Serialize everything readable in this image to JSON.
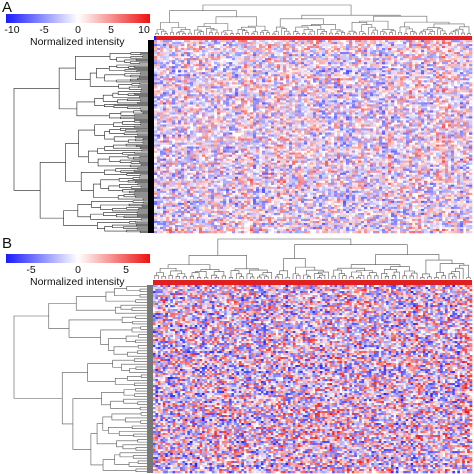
{
  "chart_data": [
    {
      "type": "heatmap",
      "panel_label": "A",
      "colorbar": {
        "label": "Normalized intensity",
        "ticks": [
          "-10",
          "-5",
          "0",
          "5",
          "10"
        ],
        "range": [
          -10,
          10
        ],
        "colors": [
          "#1a1aff",
          "#ffffff",
          "#ee1111"
        ]
      },
      "row_dendrogram": true,
      "column_dendrogram": true,
      "column_annotation_color": "#e02020",
      "row_annotation_color": "#000000"
    },
    {
      "type": "heatmap",
      "panel_label": "B",
      "colorbar": {
        "label": "Normalized intensity",
        "ticks": [
          "-5",
          "0",
          "5"
        ],
        "range": [
          -7,
          7
        ],
        "colors": [
          "#1a1aff",
          "#ffffff",
          "#ee1111"
        ]
      },
      "row_dendrogram": true,
      "column_dendrogram": true,
      "column_annotation_color": "#e02020",
      "row_annotation_color": "#777777"
    }
  ]
}
